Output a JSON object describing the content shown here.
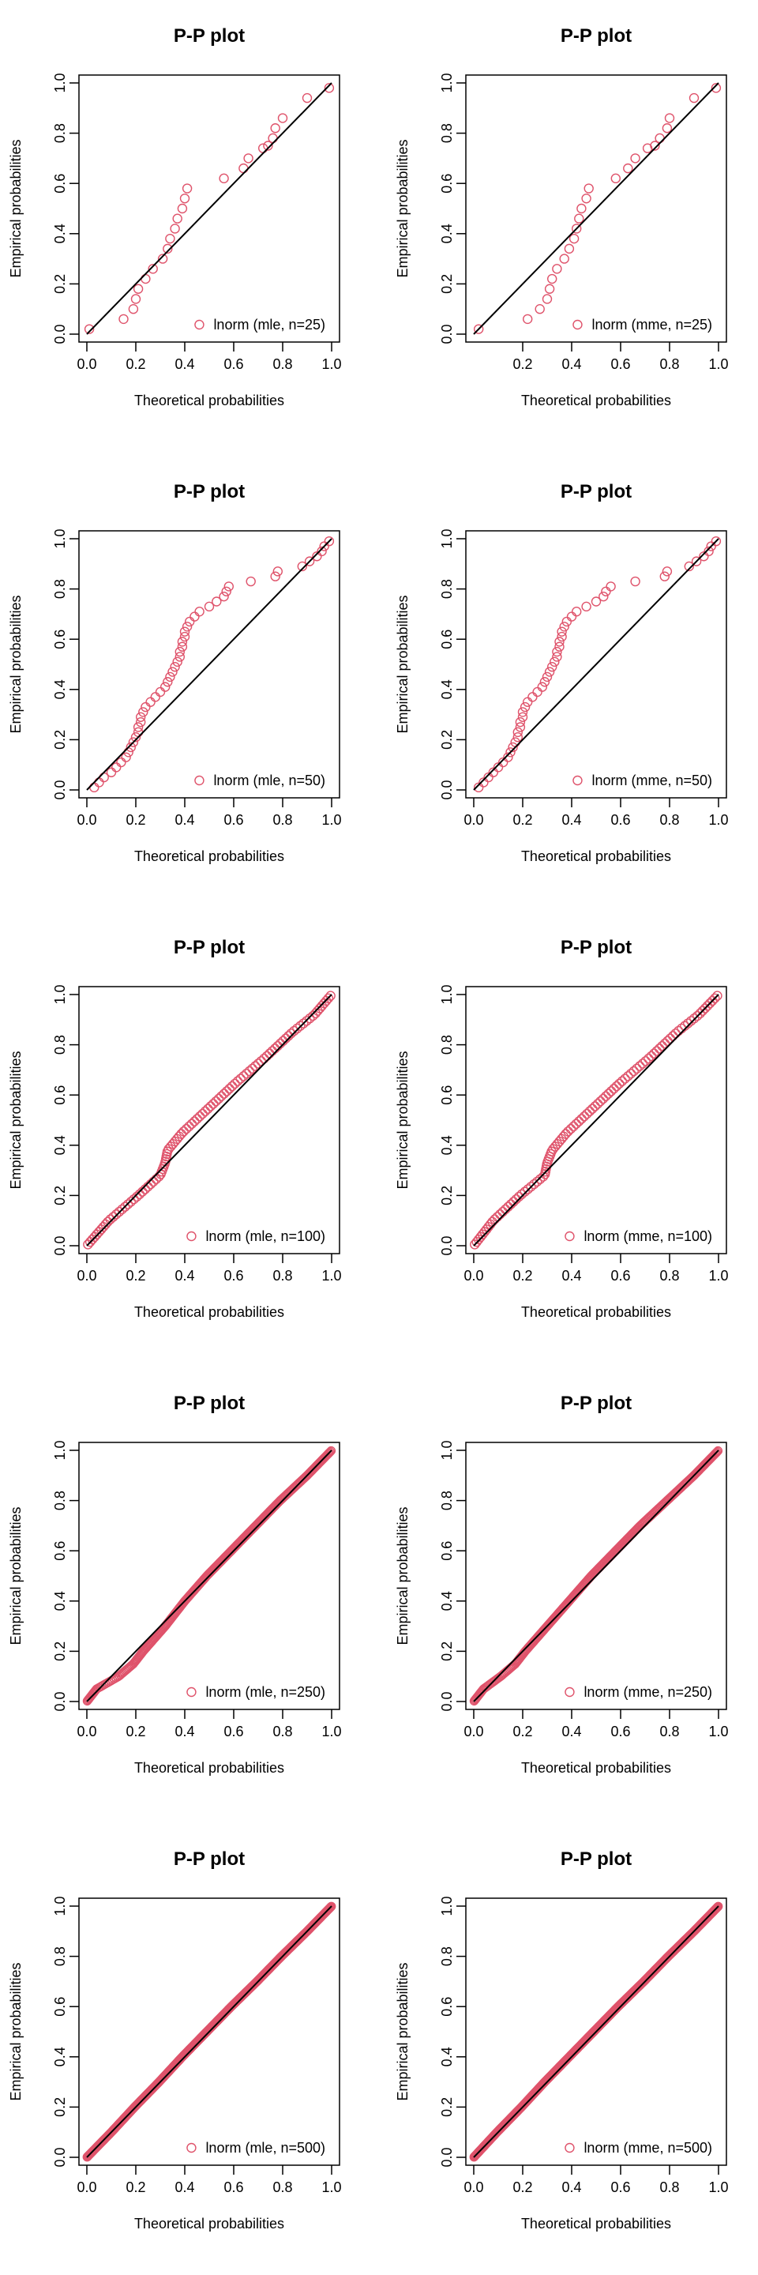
{
  "figure": {
    "layout": "5 rows x 2 columns",
    "point_color": "#DF536B",
    "line_color": "#000000"
  },
  "chart_data": [
    {
      "type": "scatter",
      "title": "P-P plot",
      "xlabel": "Theoretical probabilities",
      "ylabel": "Empirical probabilities",
      "xlim": [
        0,
        1
      ],
      "ylim": [
        0,
        1
      ],
      "xticks": [
        "0.0",
        "0.2",
        "0.4",
        "0.6",
        "0.8",
        "1.0"
      ],
      "yticks": [
        "0.0",
        "0.2",
        "0.4",
        "0.6",
        "0.8",
        "1.0"
      ],
      "reference_line": [
        [
          0,
          0
        ],
        [
          1,
          1
        ]
      ],
      "legend": {
        "position": "bottom-right",
        "label": "lnorm (mle, n=25)"
      },
      "series": [
        {
          "name": "lnorm (mle, n=25)",
          "color": "#DF536B",
          "x": [
            0.01,
            0.15,
            0.19,
            0.2,
            0.21,
            0.24,
            0.27,
            0.31,
            0.33,
            0.34,
            0.36,
            0.37,
            0.39,
            0.4,
            0.41,
            0.56,
            0.64,
            0.66,
            0.72,
            0.74,
            0.76,
            0.77,
            0.8,
            0.9,
            0.99
          ],
          "y": [
            0.02,
            0.06,
            0.1,
            0.14,
            0.18,
            0.22,
            0.26,
            0.3,
            0.34,
            0.38,
            0.42,
            0.46,
            0.5,
            0.54,
            0.58,
            0.62,
            0.66,
            0.7,
            0.74,
            0.75,
            0.78,
            0.82,
            0.86,
            0.94,
            0.98
          ]
        }
      ]
    },
    {
      "type": "scatter",
      "title": "P-P plot",
      "xlabel": "Theoretical probabilities",
      "ylabel": "Empirical probabilities",
      "xlim": [
        0,
        1
      ],
      "ylim": [
        0,
        1
      ],
      "xticks": [
        "0.2",
        "0.4",
        "0.6",
        "0.8",
        "1.0"
      ],
      "yticks": [
        "0.0",
        "0.2",
        "0.4",
        "0.6",
        "0.8",
        "1.0"
      ],
      "reference_line": [
        [
          0,
          0
        ],
        [
          1,
          1
        ]
      ],
      "legend": {
        "position": "bottom-right",
        "label": "lnorm (mme, n=25)"
      },
      "series": [
        {
          "name": "lnorm (mme, n=25)",
          "color": "#DF536B",
          "x": [
            0.02,
            0.22,
            0.27,
            0.3,
            0.31,
            0.32,
            0.34,
            0.37,
            0.39,
            0.41,
            0.42,
            0.43,
            0.44,
            0.46,
            0.47,
            0.58,
            0.63,
            0.66,
            0.71,
            0.74,
            0.76,
            0.79,
            0.8,
            0.9,
            0.99
          ],
          "y": [
            0.02,
            0.06,
            0.1,
            0.14,
            0.18,
            0.22,
            0.26,
            0.3,
            0.34,
            0.38,
            0.42,
            0.46,
            0.5,
            0.54,
            0.58,
            0.62,
            0.66,
            0.7,
            0.74,
            0.75,
            0.78,
            0.82,
            0.86,
            0.94,
            0.98
          ]
        }
      ]
    },
    {
      "type": "scatter",
      "title": "P-P plot",
      "xlabel": "Theoretical probabilities",
      "ylabel": "Empirical probabilities",
      "xlim": [
        0,
        1
      ],
      "ylim": [
        0,
        1
      ],
      "xticks": [
        "0.0",
        "0.2",
        "0.4",
        "0.6",
        "0.8",
        "1.0"
      ],
      "yticks": [
        "0.0",
        "0.2",
        "0.4",
        "0.6",
        "0.8",
        "1.0"
      ],
      "reference_line": [
        [
          0,
          0
        ],
        [
          1,
          1
        ]
      ],
      "legend": {
        "position": "bottom-right",
        "label": "lnorm (mle, n=50)"
      },
      "series": [
        {
          "name": "lnorm (mle, n=50)",
          "color": "#DF536B",
          "x": [
            0.03,
            0.05,
            0.07,
            0.1,
            0.12,
            0.14,
            0.16,
            0.17,
            0.18,
            0.19,
            0.2,
            0.21,
            0.21,
            0.22,
            0.22,
            0.23,
            0.24,
            0.26,
            0.28,
            0.3,
            0.32,
            0.33,
            0.34,
            0.35,
            0.36,
            0.37,
            0.38,
            0.38,
            0.39,
            0.39,
            0.4,
            0.4,
            0.41,
            0.42,
            0.44,
            0.46,
            0.5,
            0.53,
            0.56,
            0.57,
            0.58,
            0.67,
            0.77,
            0.78,
            0.88,
            0.91,
            0.94,
            0.96,
            0.97,
            0.99
          ],
          "y": [
            0.01,
            0.03,
            0.05,
            0.07,
            0.09,
            0.11,
            0.13,
            0.15,
            0.17,
            0.19,
            0.21,
            0.23,
            0.25,
            0.27,
            0.29,
            0.31,
            0.33,
            0.35,
            0.37,
            0.39,
            0.41,
            0.43,
            0.45,
            0.47,
            0.49,
            0.51,
            0.53,
            0.55,
            0.57,
            0.59,
            0.61,
            0.63,
            0.65,
            0.67,
            0.69,
            0.71,
            0.73,
            0.75,
            0.77,
            0.79,
            0.81,
            0.83,
            0.85,
            0.87,
            0.89,
            0.91,
            0.93,
            0.95,
            0.97,
            0.99
          ]
        }
      ]
    },
    {
      "type": "scatter",
      "title": "P-P plot",
      "xlabel": "Theoretical probabilities",
      "ylabel": "Empirical probabilities",
      "xlim": [
        0,
        1
      ],
      "ylim": [
        0,
        1
      ],
      "xticks": [
        "0.0",
        "0.2",
        "0.4",
        "0.6",
        "0.8",
        "1.0"
      ],
      "yticks": [
        "0.0",
        "0.2",
        "0.4",
        "0.6",
        "0.8",
        "1.0"
      ],
      "reference_line": [
        [
          0,
          0
        ],
        [
          1,
          1
        ]
      ],
      "legend": {
        "position": "bottom-right",
        "label": "lnorm (mme, n=50)"
      },
      "series": [
        {
          "name": "lnorm (mme, n=50)",
          "color": "#DF536B",
          "x": [
            0.02,
            0.04,
            0.06,
            0.08,
            0.1,
            0.12,
            0.14,
            0.15,
            0.16,
            0.17,
            0.18,
            0.18,
            0.19,
            0.19,
            0.2,
            0.2,
            0.21,
            0.22,
            0.24,
            0.26,
            0.28,
            0.29,
            0.3,
            0.31,
            0.32,
            0.33,
            0.34,
            0.34,
            0.35,
            0.35,
            0.36,
            0.36,
            0.37,
            0.38,
            0.4,
            0.42,
            0.46,
            0.5,
            0.53,
            0.54,
            0.56,
            0.66,
            0.78,
            0.79,
            0.88,
            0.91,
            0.94,
            0.96,
            0.97,
            0.99
          ],
          "y": [
            0.01,
            0.03,
            0.05,
            0.07,
            0.09,
            0.11,
            0.13,
            0.15,
            0.17,
            0.19,
            0.21,
            0.23,
            0.25,
            0.27,
            0.29,
            0.31,
            0.33,
            0.35,
            0.37,
            0.39,
            0.41,
            0.43,
            0.45,
            0.47,
            0.49,
            0.51,
            0.53,
            0.55,
            0.57,
            0.59,
            0.61,
            0.63,
            0.65,
            0.67,
            0.69,
            0.71,
            0.73,
            0.75,
            0.77,
            0.79,
            0.81,
            0.83,
            0.85,
            0.87,
            0.89,
            0.91,
            0.93,
            0.95,
            0.97,
            0.99
          ]
        }
      ]
    },
    {
      "type": "scatter",
      "title": "P-P plot",
      "xlabel": "Theoretical probabilities",
      "ylabel": "Empirical probabilities",
      "xlim": [
        0,
        1
      ],
      "ylim": [
        0,
        1
      ],
      "xticks": [
        "0.0",
        "0.2",
        "0.4",
        "0.6",
        "0.8",
        "1.0"
      ],
      "yticks": [
        "0.0",
        "0.2",
        "0.4",
        "0.6",
        "0.8",
        "1.0"
      ],
      "reference_line": [
        [
          0,
          0
        ],
        [
          1,
          1
        ]
      ],
      "legend": {
        "position": "bottom-right",
        "label": "lnorm (mle, n=100)"
      },
      "series": [
        {
          "name": "lnorm (mle, n=100)",
          "color": "#DF536B",
          "deviation_profile": {
            "p": [
              0,
              0.1,
              0.2,
              0.28,
              0.33,
              0.38,
              0.45,
              0.55,
              0.65,
              0.75,
              0.85,
              0.92,
              1
            ],
            "dev": [
              0,
              0.01,
              -0.01,
              -0.02,
              0.01,
              0.05,
              0.06,
              0.05,
              0.04,
              0.02,
              0.01,
              -0.01,
              0
            ]
          }
        }
      ]
    },
    {
      "type": "scatter",
      "title": "P-P plot",
      "xlabel": "Theoretical probabilities",
      "ylabel": "Empirical probabilities",
      "xlim": [
        0,
        1
      ],
      "ylim": [
        0,
        1
      ],
      "xticks": [
        "0.0",
        "0.2",
        "0.4",
        "0.6",
        "0.8",
        "1.0"
      ],
      "yticks": [
        "0.0",
        "0.2",
        "0.4",
        "0.6",
        "0.8",
        "1.0"
      ],
      "reference_line": [
        [
          0,
          0
        ],
        [
          1,
          1
        ]
      ],
      "legend": {
        "position": "bottom-right",
        "label": "lnorm (mme, n=100)"
      },
      "series": [
        {
          "name": "lnorm (mme, n=100)",
          "color": "#DF536B",
          "deviation_profile": {
            "p": [
              0,
              0.1,
              0.2,
              0.28,
              0.33,
              0.38,
              0.45,
              0.55,
              0.65,
              0.75,
              0.85,
              0.92,
              1
            ],
            "dev": [
              0,
              0.02,
              0.01,
              -0.01,
              0.03,
              0.06,
              0.07,
              0.06,
              0.05,
              0.03,
              0.02,
              0.0,
              0
            ]
          }
        }
      ]
    },
    {
      "type": "scatter",
      "title": "P-P plot",
      "xlabel": "Theoretical probabilities",
      "ylabel": "Empirical probabilities",
      "xlim": [
        0,
        1
      ],
      "ylim": [
        0,
        1
      ],
      "xticks": [
        "0.0",
        "0.2",
        "0.4",
        "0.6",
        "0.8",
        "1.0"
      ],
      "yticks": [
        "0.0",
        "0.2",
        "0.4",
        "0.6",
        "0.8",
        "1.0"
      ],
      "reference_line": [
        [
          0,
          0
        ],
        [
          1,
          1
        ]
      ],
      "legend": {
        "position": "bottom-right",
        "label": "lnorm (mle, n=250)"
      },
      "series": [
        {
          "name": "lnorm (mle, n=250)",
          "color": "#DF536B",
          "deviation_profile": {
            "p": [
              0,
              0.05,
              0.1,
              0.15,
              0.2,
              0.3,
              0.4,
              0.5,
              0.6,
              0.7,
              0.8,
              0.9,
              1
            ],
            "dev": [
              0,
              0.01,
              -0.03,
              -0.04,
              -0.03,
              -0.02,
              0.0,
              0.01,
              0.01,
              0.01,
              0.01,
              0.0,
              0
            ]
          }
        }
      ]
    },
    {
      "type": "scatter",
      "title": "P-P plot",
      "xlabel": "Theoretical probabilities",
      "ylabel": "Empirical probabilities",
      "xlim": [
        0,
        1
      ],
      "ylim": [
        0,
        1
      ],
      "xticks": [
        "0.0",
        "0.2",
        "0.4",
        "0.6",
        "0.8",
        "1.0"
      ],
      "yticks": [
        "0.0",
        "0.2",
        "0.4",
        "0.6",
        "0.8",
        "1.0"
      ],
      "reference_line": [
        [
          0,
          0
        ],
        [
          1,
          1
        ]
      ],
      "legend": {
        "position": "bottom-right",
        "label": "lnorm (mme, n=250)"
      },
      "series": [
        {
          "name": "lnorm (mme, n=250)",
          "color": "#DF536B",
          "deviation_profile": {
            "p": [
              0,
              0.05,
              0.1,
              0.15,
              0.2,
              0.3,
              0.4,
              0.5,
              0.6,
              0.7,
              0.8,
              0.9,
              1
            ],
            "dev": [
              0,
              0.01,
              -0.01,
              -0.02,
              -0.01,
              0.0,
              0.01,
              0.02,
              0.02,
              0.02,
              0.01,
              0.0,
              0
            ]
          }
        }
      ]
    },
    {
      "type": "scatter",
      "title": "P-P plot",
      "xlabel": "Theoretical probabilities",
      "ylabel": "Empirical probabilities",
      "xlim": [
        0,
        1
      ],
      "ylim": [
        0,
        1
      ],
      "xticks": [
        "0.0",
        "0.2",
        "0.4",
        "0.6",
        "0.8",
        "1.0"
      ],
      "yticks": [
        "0.0",
        "0.2",
        "0.4",
        "0.6",
        "0.8",
        "1.0"
      ],
      "reference_line": [
        [
          0,
          0
        ],
        [
          1,
          1
        ]
      ],
      "legend": {
        "position": "bottom-right",
        "label": "lnorm (mle, n=500)"
      },
      "series": [
        {
          "name": "lnorm (mle, n=500)",
          "color": "#DF536B",
          "deviation_profile": {
            "p": [
              0,
              0.1,
              0.2,
              0.3,
              0.4,
              0.5,
              0.6,
              0.7,
              0.8,
              0.9,
              1
            ],
            "dev": [
              0,
              0.0,
              0.005,
              0.005,
              0.01,
              0.01,
              0.01,
              0.005,
              0.005,
              0.0,
              0
            ]
          }
        }
      ]
    },
    {
      "type": "scatter",
      "title": "P-P plot",
      "xlabel": "Theoretical probabilities",
      "ylabel": "Empirical probabilities",
      "xlim": [
        0,
        1
      ],
      "ylim": [
        0,
        1
      ],
      "xticks": [
        "0.0",
        "0.2",
        "0.4",
        "0.6",
        "0.8",
        "1.0"
      ],
      "yticks": [
        "0.0",
        "0.2",
        "0.4",
        "0.6",
        "0.8",
        "1.0"
      ],
      "reference_line": [
        [
          0,
          0
        ],
        [
          1,
          1
        ]
      ],
      "legend": {
        "position": "bottom-right",
        "label": "lnorm (mme, n=500)"
      },
      "series": [
        {
          "name": "lnorm (mme, n=500)",
          "color": "#DF536B",
          "deviation_profile": {
            "p": [
              0,
              0.1,
              0.2,
              0.3,
              0.4,
              0.5,
              0.6,
              0.7,
              0.8,
              0.9,
              1
            ],
            "dev": [
              0,
              0.005,
              0.005,
              0.01,
              0.01,
              0.01,
              0.01,
              0.005,
              0.005,
              0.0,
              0
            ]
          }
        }
      ]
    }
  ]
}
